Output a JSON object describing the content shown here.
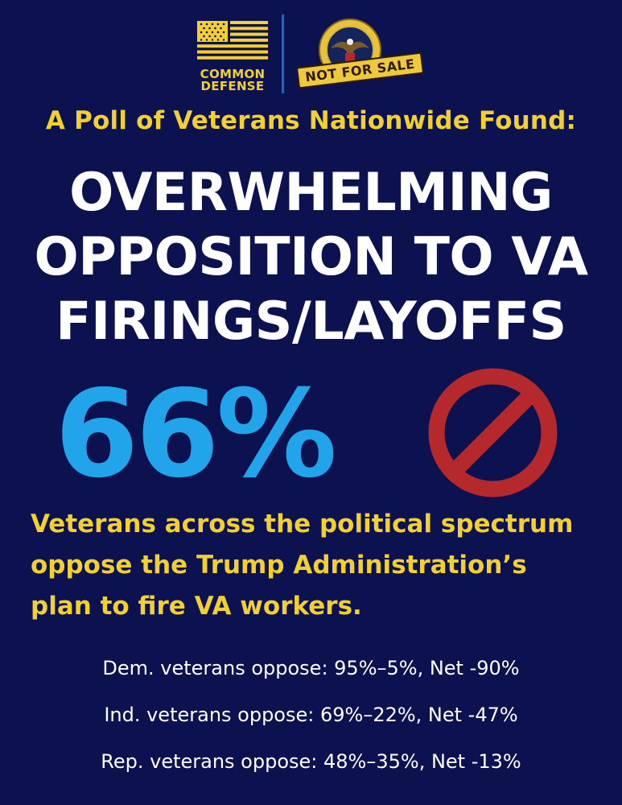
{
  "logos": {
    "org_name_line1": "COMMON",
    "org_name_line2": "DEFENSE",
    "stamp_text": "NOT FOR SALE",
    "seal_icon": "va-seal-icon",
    "flag_icon": "us-flag-icon"
  },
  "subtitle": "A Poll of Veterans Nationwide Found:",
  "headline": [
    "OVERWHELMING",
    "OPPOSITION TO VA",
    "FIRINGS/LAYOFFS"
  ],
  "big_stat": "66%",
  "no_symbol_icon": "prohibited-icon",
  "body_text": [
    "Veterans across the political spectrum",
    "oppose the Trump Administration’s",
    "plan to fire VA workers."
  ],
  "breakdown": [
    "Dem. veterans oppose: 95%–5%, Net -90%",
    "Ind. veterans oppose: 69%–22%, Net -47%",
    "Rep. veterans oppose: 48%–35%, Net -13%"
  ],
  "colors": {
    "background": "#0c1150",
    "accent_yellow": "#f1d030",
    "stat_blue": "#22a4ea",
    "no_symbol_red": "#b5282c"
  }
}
